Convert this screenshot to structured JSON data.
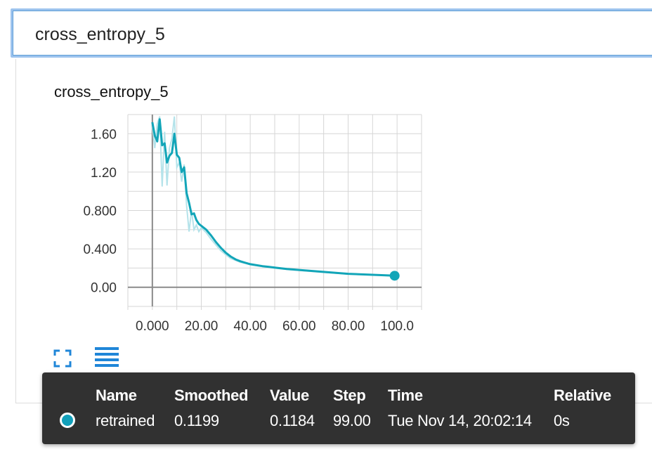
{
  "search": {
    "value": "cross_entropy_5"
  },
  "card": {
    "title": "cross_entropy_5"
  },
  "colors": {
    "series": "#12a5b8",
    "series_raw": "#b5e3ea",
    "grid": "#d6d6d6",
    "axis": "#8a8a8a",
    "icon": "#1f86d8",
    "tooltip_bg": "#262626"
  },
  "icons": {
    "expand": "fullscreen-icon",
    "data": "list-icon"
  },
  "chart_data": {
    "type": "line",
    "title": "cross_entropy_5",
    "xlabel": "",
    "ylabel": "",
    "xlim": [
      -10,
      110
    ],
    "ylim": [
      -0.2,
      1.8
    ],
    "x_ticks": [
      0,
      20,
      40,
      60,
      80,
      100
    ],
    "x_tick_labels": [
      "0.000",
      "20.00",
      "40.00",
      "60.00",
      "80.00",
      "100.0"
    ],
    "y_ticks": [
      0,
      0.4,
      0.8,
      1.2,
      1.6
    ],
    "y_tick_labels": [
      "0.00",
      "0.400",
      "0.800",
      "1.20",
      "1.60"
    ],
    "grid": true,
    "series": [
      {
        "name": "retrained",
        "smoothed": true,
        "x": [
          0,
          1,
          2,
          3,
          4,
          5,
          6,
          7,
          8,
          9,
          10,
          11,
          12,
          13,
          14,
          15,
          16,
          17,
          18,
          19,
          20,
          22,
          24,
          26,
          28,
          30,
          32,
          34,
          36,
          38,
          40,
          45,
          50,
          55,
          60,
          70,
          80,
          90,
          99
        ],
        "y": [
          1.72,
          1.58,
          1.52,
          1.75,
          1.48,
          1.5,
          1.3,
          1.37,
          1.4,
          1.6,
          1.38,
          1.35,
          1.2,
          1.25,
          0.98,
          0.88,
          0.76,
          0.77,
          0.7,
          0.66,
          0.64,
          0.6,
          0.54,
          0.47,
          0.41,
          0.36,
          0.32,
          0.29,
          0.27,
          0.255,
          0.24,
          0.22,
          0.205,
          0.19,
          0.18,
          0.16,
          0.14,
          0.13,
          0.12
        ]
      },
      {
        "name": "retrained (raw)",
        "smoothed": false,
        "x": [
          0,
          1,
          2,
          3,
          4,
          5,
          6,
          7,
          8,
          9,
          10,
          11,
          12,
          13,
          14,
          15,
          16,
          17,
          18,
          19,
          20,
          22,
          24,
          26,
          28,
          30,
          32,
          34,
          36,
          38,
          40,
          45,
          50,
          55,
          60,
          70,
          80,
          90,
          99
        ],
        "y": [
          1.68,
          1.45,
          1.7,
          1.78,
          1.05,
          1.62,
          1.06,
          1.45,
          1.55,
          1.78,
          1.25,
          1.3,
          1.1,
          1.28,
          0.85,
          0.58,
          0.8,
          0.6,
          0.65,
          0.58,
          0.62,
          0.57,
          0.5,
          0.44,
          0.38,
          0.34,
          0.3,
          0.28,
          0.26,
          0.25,
          0.235,
          0.215,
          0.2,
          0.185,
          0.175,
          0.155,
          0.138,
          0.128,
          0.118
        ]
      }
    ]
  },
  "tooltip": {
    "headers": {
      "name": "Name",
      "smoothed": "Smoothed",
      "value": "Value",
      "step": "Step",
      "time": "Time",
      "relative": "Relative"
    },
    "row": {
      "name": "retrained",
      "smoothed": "0.1199",
      "value": "0.1184",
      "step": "99.00",
      "time": "Tue Nov 14, 20:02:14",
      "relative": "0s"
    }
  }
}
